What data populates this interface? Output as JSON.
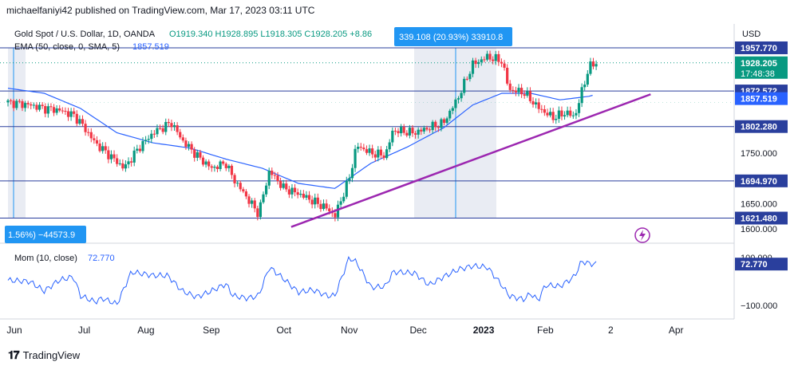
{
  "publisher": "michaelfaniyi42 published on TradingView.com, Mar 17, 2023 03:11 UTC",
  "footer": {
    "brand": "TradingView"
  },
  "colors": {
    "up": "#089981",
    "down": "#f23645",
    "ema": "#2962ff",
    "hline": "#2a3f9d",
    "trend": "#9c27b0",
    "mom": "#2962ff",
    "range_fill": "#e9ecf3",
    "badge": "#2a3f9d",
    "measure_badge": "#2196f3"
  },
  "legend": {
    "symbol": "Gold Spot / U.S. Dollar, 1D, OANDA",
    "ohlc": "O1919.340  H1928.895  L1918.305  C1928.205  +8.86",
    "ema": "EMA (50, close, 0, SMA, 5)",
    "ema_value": "1857.519"
  },
  "measure": {
    "top_label": "339.108 (20.93%) 33910.8",
    "left_label": "1.56%) −44573.9"
  },
  "chart_data": {
    "type": "candlestick",
    "currency": "USD",
    "time_labels": [
      "Jun",
      "Jul",
      "Aug",
      "Sep",
      "Oct",
      "Nov",
      "Dec",
      "2023",
      "Feb",
      "2",
      "Apr"
    ],
    "ylim": [
      1575,
      2005
    ],
    "price_ticks": [
      1957.77,
      1928.205,
      1872.572,
      1857.519,
      1802.28,
      1750.0,
      1694.97,
      1650.0,
      1621.48,
      1600.0
    ],
    "badges": [
      {
        "value": 1957.77,
        "label": "1957.770",
        "kind": "level"
      },
      {
        "value": 1928.205,
        "label": "1928.205",
        "sub": "17:48:38",
        "kind": "last"
      },
      {
        "value": 1872.572,
        "label": "1872.572",
        "kind": "level"
      },
      {
        "value": 1857.519,
        "label": "1857.519",
        "kind": "ema"
      },
      {
        "value": 1802.28,
        "label": "1802.280",
        "kind": "level"
      },
      {
        "value": 1694.97,
        "label": "1694.970",
        "kind": "level"
      },
      {
        "value": 1621.48,
        "label": "1621.480",
        "kind": "level"
      }
    ],
    "plain_ticks": [
      {
        "value": 1750,
        "label": "1750.000"
      },
      {
        "value": 1650,
        "label": "1650.000"
      },
      {
        "value": 1600,
        "label": "1600.000"
      }
    ],
    "horizontal_levels": [
      1957.77,
      1872.572,
      1802.28,
      1694.97,
      1621.48
    ],
    "trendline": {
      "from": [
        0.39,
        1604
      ],
      "to": [
        0.885,
        1866
      ]
    },
    "close_anchors": [
      [
        0.0,
        1850
      ],
      [
        0.03,
        1845
      ],
      [
        0.05,
        1838
      ],
      [
        0.07,
        1835
      ],
      [
        0.09,
        1825
      ],
      [
        0.1,
        1810
      ],
      [
        0.12,
        1770
      ],
      [
        0.14,
        1745
      ],
      [
        0.16,
        1720
      ],
      [
        0.18,
        1760
      ],
      [
        0.2,
        1790
      ],
      [
        0.225,
        1810
      ],
      [
        0.24,
        1775
      ],
      [
        0.26,
        1745
      ],
      [
        0.28,
        1720
      ],
      [
        0.3,
        1730
      ],
      [
        0.31,
        1700
      ],
      [
        0.33,
        1660
      ],
      [
        0.345,
        1630
      ],
      [
        0.36,
        1715
      ],
      [
        0.38,
        1680
      ],
      [
        0.4,
        1670
      ],
      [
        0.42,
        1655
      ],
      [
        0.44,
        1640
      ],
      [
        0.45,
        1625
      ],
      [
        0.47,
        1700
      ],
      [
        0.48,
        1765
      ],
      [
        0.5,
        1750
      ],
      [
        0.52,
        1745
      ],
      [
        0.53,
        1795
      ],
      [
        0.56,
        1790
      ],
      [
        0.58,
        1800
      ],
      [
        0.6,
        1810
      ],
      [
        0.62,
        1860
      ],
      [
        0.64,
        1925
      ],
      [
        0.66,
        1940
      ],
      [
        0.68,
        1932
      ],
      [
        0.69,
        1875
      ],
      [
        0.71,
        1870
      ],
      [
        0.73,
        1840
      ],
      [
        0.75,
        1820
      ],
      [
        0.77,
        1830
      ],
      [
        0.78,
        1820
      ],
      [
        0.79,
        1870
      ],
      [
        0.8,
        1920
      ],
      [
        0.81,
        1928.205
      ]
    ],
    "ema_anchors": [
      [
        0.0,
        1878
      ],
      [
        0.05,
        1868
      ],
      [
        0.1,
        1838
      ],
      [
        0.15,
        1790
      ],
      [
        0.2,
        1770
      ],
      [
        0.25,
        1760
      ],
      [
        0.3,
        1738
      ],
      [
        0.35,
        1720
      ],
      [
        0.4,
        1690
      ],
      [
        0.45,
        1680
      ],
      [
        0.5,
        1730
      ],
      [
        0.55,
        1762
      ],
      [
        0.6,
        1800
      ],
      [
        0.64,
        1845
      ],
      [
        0.68,
        1868
      ],
      [
        0.72,
        1868
      ],
      [
        0.76,
        1855
      ],
      [
        0.8,
        1862
      ],
      [
        0.81,
        1866
      ]
    ],
    "momentum": {
      "title": "Mom (10, close)",
      "value": "72.770",
      "ylim": [
        -150,
        150
      ],
      "ticks": [
        {
          "value": 100,
          "label": "100.000"
        },
        {
          "value": -100,
          "label": "−100.000"
        }
      ],
      "badge": {
        "value": 72.77,
        "label": "72.770"
      },
      "anchors": [
        [
          0.0,
          5
        ],
        [
          0.03,
          0
        ],
        [
          0.05,
          -40
        ],
        [
          0.07,
          5
        ],
        [
          0.09,
          20
        ],
        [
          0.1,
          -60
        ],
        [
          0.12,
          -85
        ],
        [
          0.13,
          -70
        ],
        [
          0.15,
          -95
        ],
        [
          0.17,
          40
        ],
        [
          0.2,
          25
        ],
        [
          0.22,
          25
        ],
        [
          0.24,
          -40
        ],
        [
          0.26,
          -65
        ],
        [
          0.28,
          -40
        ],
        [
          0.3,
          -10
        ],
        [
          0.31,
          -60
        ],
        [
          0.33,
          -70
        ],
        [
          0.345,
          -60
        ],
        [
          0.36,
          60
        ],
        [
          0.38,
          10
        ],
        [
          0.4,
          -45
        ],
        [
          0.42,
          -35
        ],
        [
          0.44,
          -60
        ],
        [
          0.45,
          -60
        ],
        [
          0.47,
          100
        ],
        [
          0.48,
          80
        ],
        [
          0.5,
          -25
        ],
        [
          0.52,
          -20
        ],
        [
          0.53,
          40
        ],
        [
          0.56,
          35
        ],
        [
          0.58,
          -15
        ],
        [
          0.6,
          20
        ],
        [
          0.62,
          50
        ],
        [
          0.64,
          65
        ],
        [
          0.66,
          60
        ],
        [
          0.68,
          -15
        ],
        [
          0.69,
          -60
        ],
        [
          0.71,
          -75
        ],
        [
          0.72,
          -50
        ],
        [
          0.73,
          -80
        ],
        [
          0.74,
          -15
        ],
        [
          0.76,
          -20
        ],
        [
          0.78,
          20
        ],
        [
          0.79,
          85
        ],
        [
          0.8,
          75
        ],
        [
          0.81,
          72.77
        ]
      ]
    }
  }
}
